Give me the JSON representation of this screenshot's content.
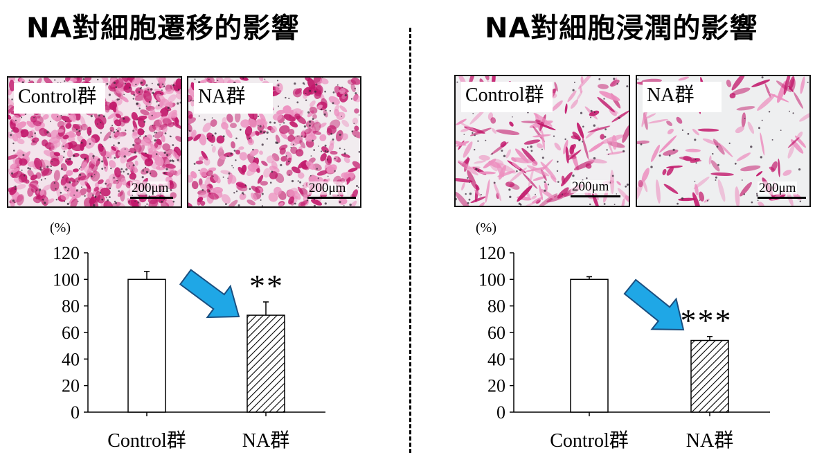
{
  "panels": {
    "left": {
      "title": "NA對細胞遷移的影響",
      "images": [
        {
          "label": "Control群",
          "scale": "200μm"
        },
        {
          "label": "NA群",
          "scale": "200μm"
        }
      ]
    },
    "right": {
      "title": "NA對細胞浸潤的影響",
      "images": [
        {
          "label": "Control群",
          "scale": "200μm"
        },
        {
          "label": "NA群",
          "scale": "200μm"
        }
      ]
    }
  },
  "colors": {
    "stain_dense": "#c2186b",
    "stain_light": "#ec8fbf",
    "nucleus": "#3a2a3a",
    "arrow_fill": "#1fa7e6",
    "arrow_stroke": "#1a4f80"
  },
  "chart_data": [
    {
      "type": "bar",
      "unit_label": "(%)",
      "categories": [
        "Control群",
        "NA群"
      ],
      "values": [
        100,
        73
      ],
      "errors": [
        6,
        10
      ],
      "fills": [
        "white",
        "hatch"
      ],
      "ylim": [
        0,
        120
      ],
      "yticks": [
        0,
        20,
        40,
        60,
        80,
        100,
        120
      ],
      "significance": {
        "category": "NA群",
        "label": "**"
      },
      "annotation": "blue-arrow"
    },
    {
      "type": "bar",
      "unit_label": "(%)",
      "categories": [
        "Control群",
        "NA群"
      ],
      "values": [
        100,
        54
      ],
      "errors": [
        2,
        3
      ],
      "fills": [
        "white",
        "hatch"
      ],
      "ylim": [
        0,
        120
      ],
      "yticks": [
        0,
        20,
        40,
        60,
        80,
        100,
        120
      ],
      "significance": {
        "category": "NA群",
        "label": "***"
      },
      "annotation": "blue-arrow"
    }
  ]
}
